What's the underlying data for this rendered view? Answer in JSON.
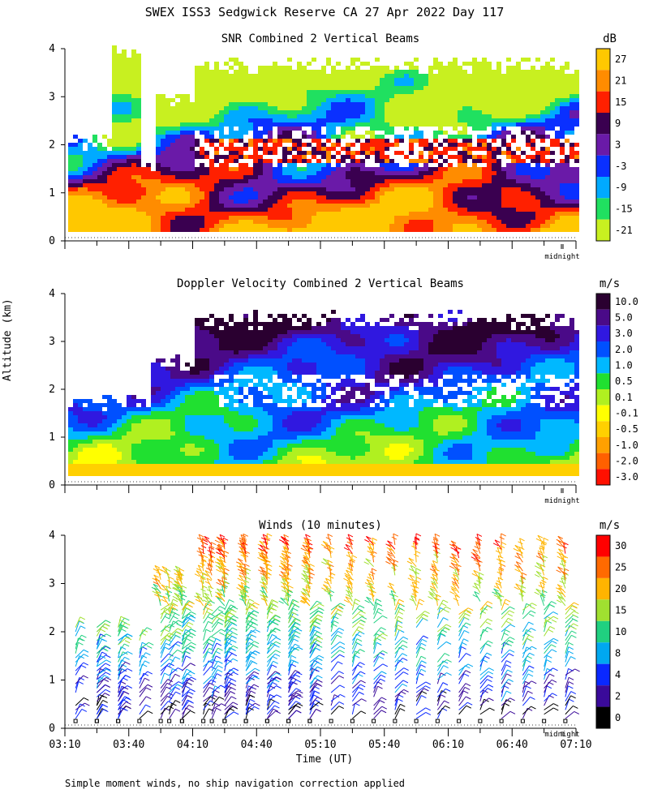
{
  "title": "SWEX ISS3 Sedgwick Reserve CA  27 Apr 2022 Day 117",
  "ylabel": "Altitude (km)",
  "xlabel": "Time (UT)",
  "footnote": "Simple moment winds, no ship navigation correction applied",
  "midnight_label": "midnight",
  "chart_data": [
    {
      "type": "heatmap",
      "title": "SNR Combined 2 Vertical Beams",
      "colorbar_unit": "dB",
      "colorbar_labels": [
        "27",
        "21",
        "15",
        "9",
        "3",
        "-3",
        "-9",
        "-15",
        "-21"
      ],
      "colorbar_colors": [
        "#ffc800",
        "#ff8c00",
        "#ff2000",
        "#3a0050",
        "#6a1aa8",
        "#0a30ff",
        "#00aaff",
        "#20e060",
        "#c8f020"
      ],
      "ylim": [
        0,
        4
      ],
      "yticks": [
        "0",
        "1",
        "2",
        "3",
        "4"
      ],
      "xlim": [
        "03:10",
        "07:10"
      ],
      "x_tick_count": 17
    },
    {
      "type": "heatmap",
      "title": "Doppler Velocity Combined 2 Vertical Beams",
      "colorbar_unit": "m/s",
      "colorbar_labels": [
        "10.0",
        "5.0",
        "3.0",
        "2.0",
        "1.0",
        "0.5",
        "0.1",
        "-0.1",
        "-0.5",
        "-1.0",
        "-2.0",
        "-3.0"
      ],
      "colorbar_colors": [
        "#2a0030",
        "#4a0a88",
        "#3018e0",
        "#0050ff",
        "#00b8ff",
        "#20e030",
        "#b0f020",
        "#ffff00",
        "#ffd000",
        "#ffa000",
        "#ff6000",
        "#ff1000"
      ],
      "ylim": [
        0,
        4
      ],
      "yticks": [
        "0",
        "1",
        "2",
        "3",
        "4"
      ],
      "xlim": [
        "03:10",
        "07:10"
      ],
      "x_tick_count": 17
    },
    {
      "type": "scatter",
      "title": "Winds (10 minutes)",
      "colorbar_unit": "m/s",
      "colorbar_labels": [
        "30",
        "25",
        "20",
        "15",
        "10",
        "8",
        "4",
        "2",
        "0"
      ],
      "colorbar_colors": [
        "#ff0000",
        "#ff6a00",
        "#ffb400",
        "#a0e030",
        "#20d080",
        "#00a8f0",
        "#0a28ff",
        "#3a0a9a",
        "#000000"
      ],
      "ylim": [
        0,
        4
      ],
      "yticks": [
        "0",
        "1",
        "2",
        "3",
        "4"
      ],
      "xticks": [
        "03:10",
        "03:40",
        "04:10",
        "04:40",
        "05:10",
        "05:40",
        "06:10",
        "06:40",
        "07:10"
      ],
      "xlim": [
        "03:10",
        "07:10"
      ],
      "x_tick_count": 17
    }
  ]
}
